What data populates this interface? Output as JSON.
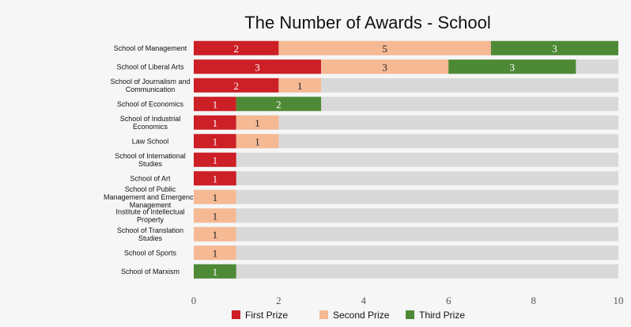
{
  "chart_data": {
    "type": "bar",
    "orientation": "horizontal",
    "stacked": true,
    "title": "The Number of Awards - School",
    "categories": [
      "School of Management",
      "School of Liberal Arts",
      "School of Journalism and Communication",
      "School of Economics",
      "School of Industrial Economics",
      "Law School",
      "School of International Studies",
      "School of Art",
      "School of Public Management and Emergency Management",
      "Institute of Intellectual Property",
      "School of Translation Studies",
      "School of Sports",
      "School of Marxism"
    ],
    "series": [
      {
        "name": "First Prize",
        "color": "#cc1f26",
        "values": [
          2,
          3,
          2,
          1,
          1,
          1,
          1,
          1,
          0,
          0,
          0,
          0,
          0
        ]
      },
      {
        "name": "Second Prize",
        "color": "#f5b994",
        "values": [
          5,
          3,
          1,
          0,
          1,
          1,
          0,
          0,
          1,
          1,
          1,
          1,
          0
        ]
      },
      {
        "name": "Third Prize",
        "color": "#4e8a36",
        "values": [
          3,
          3,
          0,
          2,
          0,
          0,
          0,
          0,
          0,
          0,
          0,
          0,
          1
        ]
      }
    ],
    "xlim": [
      0,
      10
    ],
    "xticks": [
      0,
      2,
      4,
      6,
      8,
      10
    ],
    "track_color": "#d9d9d9",
    "legend_position": "bottom",
    "xlabel": "",
    "ylabel": ""
  }
}
